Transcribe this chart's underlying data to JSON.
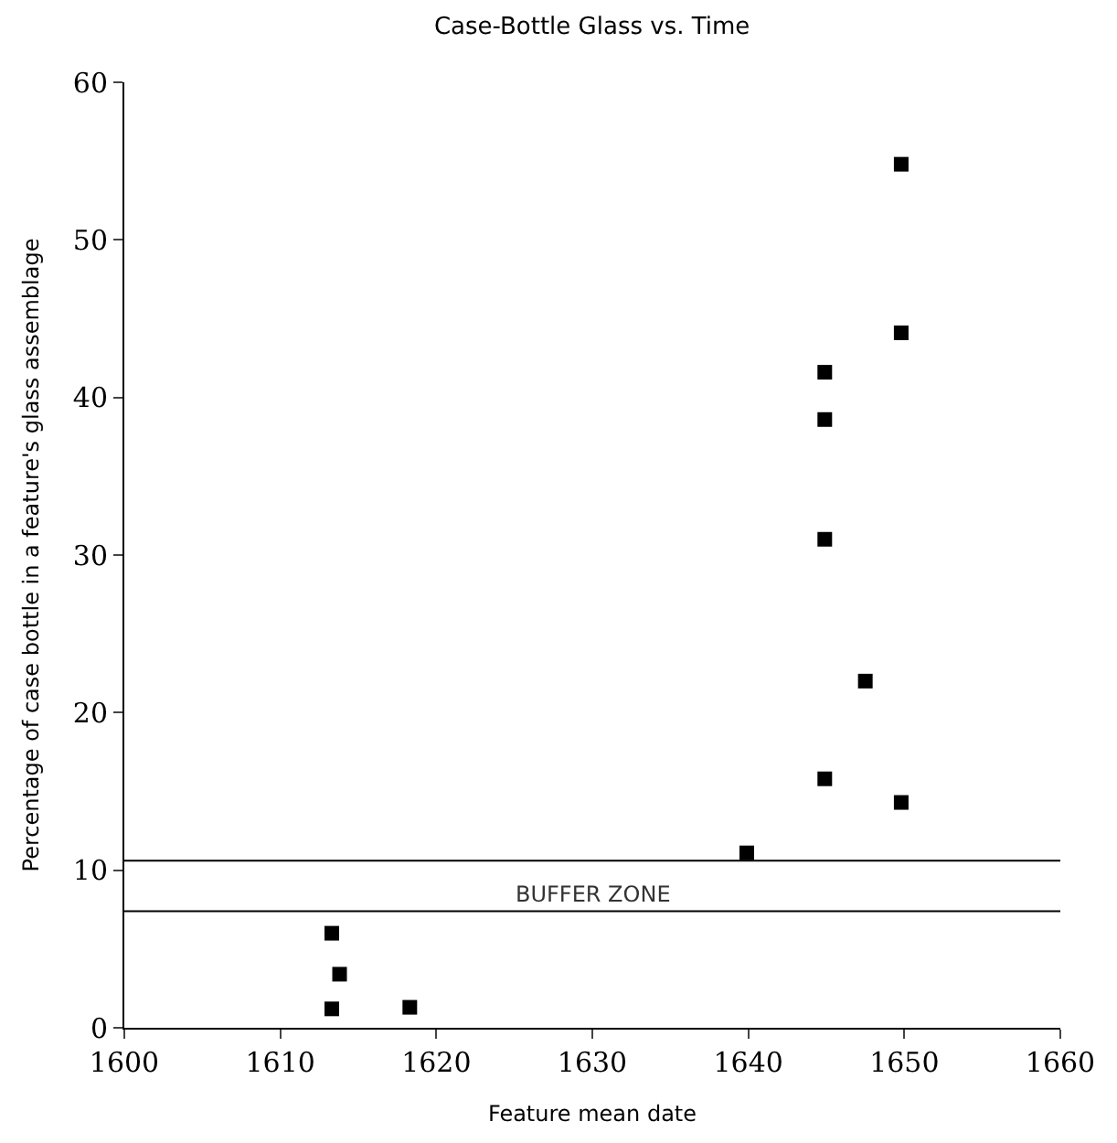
{
  "chart_data": {
    "type": "scatter",
    "title": "Case-Bottle Glass vs. Time",
    "xlabel": "Feature mean date",
    "ylabel": "Percentage of case bottle in a feature's glass assemblage",
    "x": [
      1613.3,
      1613.8,
      1613.3,
      1618.3,
      1639.9,
      1644.9,
      1644.9,
      1644.9,
      1644.9,
      1647.5,
      1649.8,
      1649.8,
      1649.8
    ],
    "values": [
      6.0,
      3.4,
      1.2,
      1.3,
      11.1,
      41.6,
      38.6,
      31.0,
      15.8,
      22.0,
      54.8,
      44.1,
      14.3
    ],
    "color": "#000000",
    "marker": "square",
    "xlim": [
      1600,
      1660
    ],
    "xticks": [
      1600,
      1610,
      1620,
      1630,
      1640,
      1650,
      1660
    ],
    "ylim": [
      0,
      60
    ],
    "yticks": [
      0,
      10,
      20,
      30,
      40,
      50,
      60
    ],
    "ref_lines": [
      {
        "axis": "y",
        "value": 10.6,
        "label": null,
        "color": "#000000"
      },
      {
        "axis": "y",
        "value": 7.4,
        "label": "BUFFER ZONE",
        "color": "#000000"
      }
    ]
  }
}
